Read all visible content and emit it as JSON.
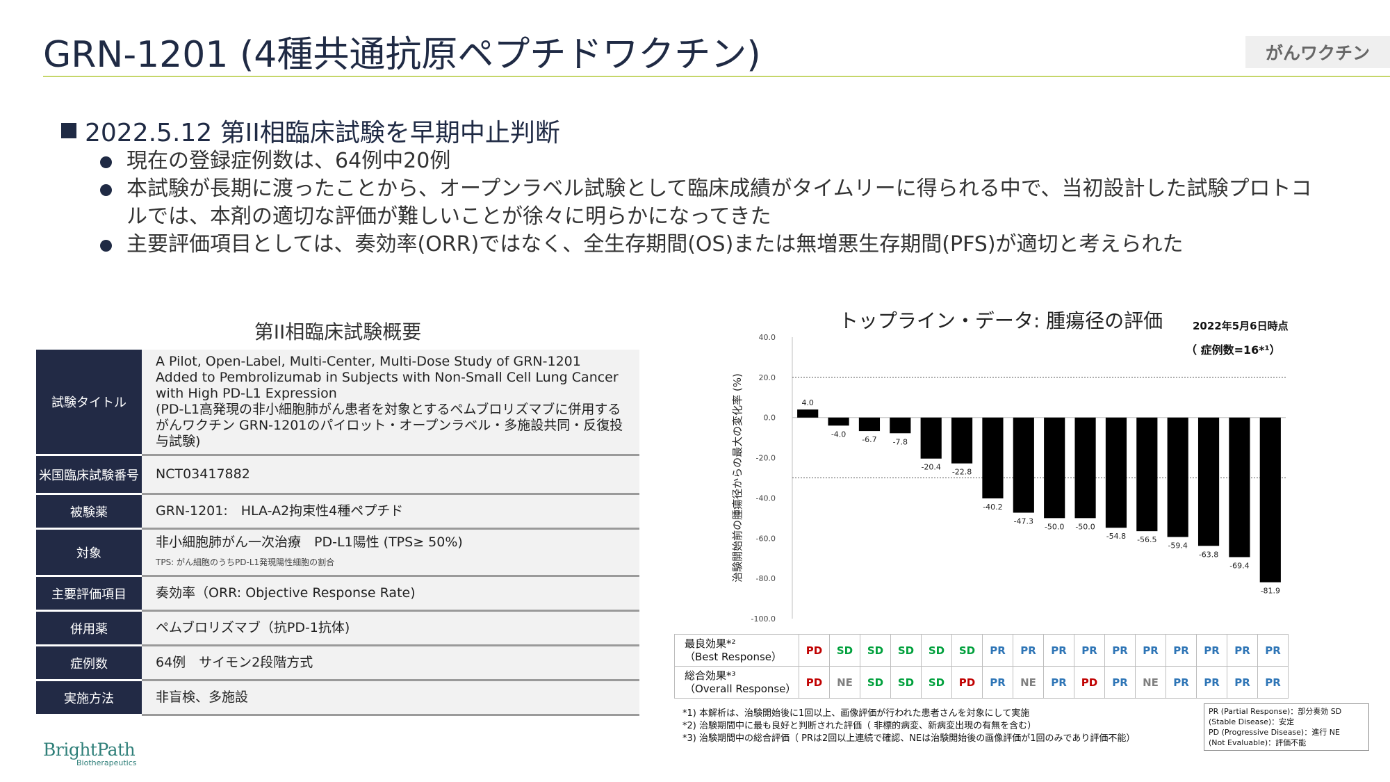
{
  "header": {
    "title": "GRN-1201 (4種共通抗原ペプチドワクチン)",
    "tag": "がんワクチン"
  },
  "summary": {
    "heading": "2022.5.12 第II相臨床試験を早期中止判断",
    "bullets": [
      "現在の登録症例数は、64例中20例",
      "本試験が長期に渡ったことから、オープンラベル試験として臨床成績がタイムリーに得られる中で、当初設計した試験プロトコルでは、本剤の適切な評価が難しいことが徐々に明らかになってきた",
      "主要評価項目としては、奏効率(ORR)ではなく、全生存期間(OS)または無増悪生存期間(PFS)が適切と考えられた"
    ]
  },
  "overview": {
    "title": "第II相臨床試験概要",
    "rows": [
      {
        "label": "試験タイトル",
        "value": "A Pilot, Open-Label, Multi-Center, Multi-Dose Study of GRN-1201 Added to Pembrolizumab in Subjects with Non-Small Cell Lung Cancer with High PD-L1 Expression",
        "value2": "(PD-L1高発現の非小細胞肺がん患者を対象とするペムブロリズマブに併用するがんワクチン GRN-1201のパイロット・オープンラベル・多施設共同・反復投与試験)"
      },
      {
        "label": "米国臨床試験番号",
        "value": "NCT03417882"
      },
      {
        "label": "被験薬",
        "value": "GRN-1201:　HLA-A2拘束性4種ペプチド"
      },
      {
        "label": "対象",
        "value": "非小細胞肺がん一次治療　PD-L1陽性 (TPS≥ 50%)",
        "note": "TPS: がん細胞のうちPD-L1発現陽性細胞の割合"
      },
      {
        "label": "主要評価項目",
        "value": "奏効率（ORR: Objective Response Rate)"
      },
      {
        "label": "併用薬",
        "value": "ペムブロリズマブ（抗PD-1抗体)"
      },
      {
        "label": "症例数",
        "value": "64例　サイモン2段階方式"
      },
      {
        "label": "実施方法",
        "value": "非盲検、多施設"
      }
    ]
  },
  "chart_data": {
    "type": "bar",
    "title": "トップライン・データ: 腫瘍径の評価",
    "date_note": "2022年5月6日時点",
    "case_note": "（ 症例数=16*¹）",
    "ylabel": "治験開始前の腫瘍径からの最大の変化率 (%)",
    "ylim": [
      -100,
      40
    ],
    "yticks": [
      "40.0",
      "20.0",
      "0.0",
      "-20.0",
      "-40.0",
      "-60.0",
      "-80.0",
      "-100.0"
    ],
    "reference_lines": [
      20,
      -30
    ],
    "values": [
      4.0,
      -4.0,
      -6.7,
      -7.8,
      -20.4,
      -22.8,
      -40.2,
      -47.3,
      -50.0,
      -50.0,
      -54.8,
      -56.5,
      -59.4,
      -63.8,
      -69.4,
      -81.9
    ],
    "labels": [
      "4.0",
      "-4.0",
      "-6.7",
      "-7.8",
      "-20.4",
      "-22.8",
      "-40.2",
      "-47.3",
      "-50.0",
      "-50.0",
      "-54.8",
      "-56.5",
      "-59.4",
      "-63.8",
      "-69.4",
      "-81.9"
    ],
    "bar_color": "#000000"
  },
  "responses": {
    "best_label": "最良効果*²",
    "best_sub": "（Best Response）",
    "overall_label": "総合効果*³",
    "overall_sub": "（Overall Response）",
    "best": [
      "PD",
      "SD",
      "SD",
      "SD",
      "SD",
      "SD",
      "PR",
      "PR",
      "PR",
      "PR",
      "PR",
      "PR",
      "PR",
      "PR",
      "PR",
      "PR"
    ],
    "overall": [
      "PD",
      "NE",
      "SD",
      "SD",
      "SD",
      "PD",
      "PR",
      "NE",
      "PR",
      "PD",
      "PR",
      "NE",
      "PR",
      "PR",
      "PR",
      "PR"
    ],
    "colors": {
      "PD": "#c00000",
      "SD": "#00a03c",
      "PR": "#2e75b6",
      "NE": "#7f7f7f"
    }
  },
  "footnotes": [
    "*1) 本解析は、治験開始後に1回以上、画像評価が行われた患者さんを対象にして実施",
    "*2) 治験期間中に最も良好と判断された評価（ 非標的病変、新病変出現の有無を含む）",
    "*3) 治験期間中の総合評価（ PRは2回以上連続で確認、NEは治験開始後の画像評価が1回のみであり評価不能）"
  ],
  "legend": [
    "PR (Partial Response)：部分奏効 SD",
    "(Stable Disease)：安定",
    "PD (Progressive Disease)：進行 NE",
    "(Not Evaluable)：評価不能"
  ],
  "logo": {
    "name": "BrightPath",
    "sub": "Biotherapeutics"
  }
}
